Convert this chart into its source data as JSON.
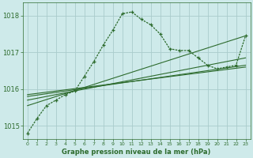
{
  "title": "Graphe pression niveau de la mer (hPa)",
  "bg_color": "#ceeaea",
  "grid_color": "#aacccc",
  "line_color": "#2d6b2d",
  "xlim": [
    -0.5,
    23.5
  ],
  "ylim": [
    1014.65,
    1018.35
  ],
  "yticks": [
    1015,
    1016,
    1017,
    1018
  ],
  "xticks": [
    0,
    1,
    2,
    3,
    4,
    5,
    6,
    7,
    8,
    9,
    10,
    11,
    12,
    13,
    14,
    15,
    16,
    17,
    18,
    19,
    20,
    21,
    22,
    23
  ],
  "main_series": {
    "x": [
      0,
      1,
      2,
      3,
      4,
      5,
      6,
      7,
      8,
      9,
      10,
      11,
      12,
      13,
      14,
      15,
      16,
      17,
      18,
      19,
      20,
      21,
      22,
      23
    ],
    "y": [
      1014.8,
      1015.2,
      1015.55,
      1015.7,
      1015.85,
      1015.95,
      1016.35,
      1016.75,
      1017.2,
      1017.6,
      1018.05,
      1018.1,
      1017.9,
      1017.75,
      1017.5,
      1017.1,
      1017.05,
      1017.05,
      1016.85,
      1016.65,
      1016.55,
      1016.6,
      1016.65,
      1017.45
    ]
  },
  "straight_lines": [
    {
      "x0": 0,
      "y0": 1015.55,
      "x1": 23,
      "y1": 1017.45
    },
    {
      "x0": 0,
      "y0": 1015.7,
      "x1": 23,
      "y1": 1016.85
    },
    {
      "x0": 0,
      "y0": 1015.8,
      "x1": 23,
      "y1": 1016.65
    },
    {
      "x0": 0,
      "y0": 1015.85,
      "x1": 23,
      "y1": 1016.6
    }
  ]
}
